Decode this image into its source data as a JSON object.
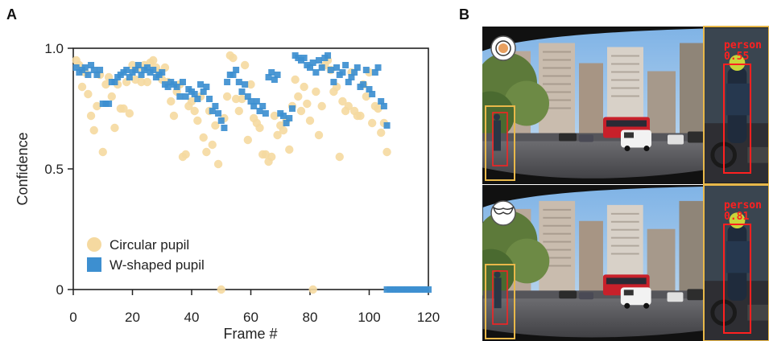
{
  "panel_a_letter": "A",
  "panel_b_letter": "B",
  "chart_data": {
    "type": "scatter",
    "xlabel": "Frame #",
    "ylabel": "Confidence",
    "xlim": [
      0,
      120
    ],
    "ylim": [
      0,
      1.0
    ],
    "xticks": [
      "0",
      "20",
      "40",
      "60",
      "80",
      "100",
      "120"
    ],
    "xtick_values": [
      0,
      20,
      40,
      60,
      80,
      100,
      120
    ],
    "yticks": [
      "0",
      "0.5",
      "1.0"
    ],
    "ytick_values": [
      0,
      0.5,
      1.0
    ],
    "legend_position": "bottom-left",
    "series": [
      {
        "name": "Circular pupil",
        "marker": "circle",
        "color": "#f5d9a0",
        "points": [
          [
            1,
            0.95
          ],
          [
            2,
            0.93
          ],
          [
            3,
            0.84
          ],
          [
            4,
            0.9
          ],
          [
            5,
            0.81
          ],
          [
            6,
            0.72
          ],
          [
            7,
            0.66
          ],
          [
            8,
            0.76
          ],
          [
            9,
            0.89
          ],
          [
            10,
            0.57
          ],
          [
            11,
            0.85
          ],
          [
            12,
            0.88
          ],
          [
            13,
            0.8
          ],
          [
            14,
            0.67
          ],
          [
            15,
            0.85
          ],
          [
            16,
            0.75
          ],
          [
            17,
            0.75
          ],
          [
            18,
            0.86
          ],
          [
            19,
            0.73
          ],
          [
            20,
            0.93
          ],
          [
            21,
            0.87
          ],
          [
            22,
            0.92
          ],
          [
            23,
            0.86
          ],
          [
            24,
            0.93
          ],
          [
            25,
            0.86
          ],
          [
            26,
            0.94
          ],
          [
            27,
            0.95
          ],
          [
            28,
            0.92
          ],
          [
            29,
            0.9
          ],
          [
            30,
            0.87
          ],
          [
            31,
            0.92
          ],
          [
            32,
            0.86
          ],
          [
            33,
            0.78
          ],
          [
            34,
            0.72
          ],
          [
            35,
            0.82
          ],
          [
            36,
            0.85
          ],
          [
            37,
            0.55
          ],
          [
            38,
            0.56
          ],
          [
            39,
            0.76
          ],
          [
            40,
            0.78
          ],
          [
            41,
            0.74
          ],
          [
            42,
            0.7
          ],
          [
            43,
            0.8
          ],
          [
            44,
            0.63
          ],
          [
            45,
            0.57
          ],
          [
            46,
            0.74
          ],
          [
            47,
            0.6
          ],
          [
            48,
            0.68
          ],
          [
            49,
            0.52
          ],
          [
            50,
            0.0
          ],
          [
            51,
            0.71
          ],
          [
            52,
            0.8
          ],
          [
            53,
            0.97
          ],
          [
            54,
            0.96
          ],
          [
            55,
            0.79
          ],
          [
            56,
            0.74
          ],
          [
            57,
            0.79
          ],
          [
            58,
            0.93
          ],
          [
            59,
            0.62
          ],
          [
            60,
            0.85
          ],
          [
            61,
            0.71
          ],
          [
            62,
            0.69
          ],
          [
            63,
            0.67
          ],
          [
            64,
            0.56
          ],
          [
            65,
            0.56
          ],
          [
            66,
            0.53
          ],
          [
            67,
            0.55
          ],
          [
            68,
            0.72
          ],
          [
            69,
            0.64
          ],
          [
            70,
            0.68
          ],
          [
            71,
            0.66
          ],
          [
            72,
            0.7
          ],
          [
            73,
            0.58
          ],
          [
            74,
            0.76
          ],
          [
            75,
            0.87
          ],
          [
            76,
            0.8
          ],
          [
            77,
            0.74
          ],
          [
            78,
            0.84
          ],
          [
            79,
            0.77
          ],
          [
            80,
            0.7
          ],
          [
            81,
            0.0
          ],
          [
            82,
            0.82
          ],
          [
            83,
            0.64
          ],
          [
            84,
            0.76
          ],
          [
            85,
            0.93
          ],
          [
            86,
            0.95
          ],
          [
            87,
            0.91
          ],
          [
            88,
            0.82
          ],
          [
            89,
            0.84
          ],
          [
            90,
            0.55
          ],
          [
            91,
            0.78
          ],
          [
            92,
            0.74
          ],
          [
            93,
            0.76
          ],
          [
            94,
            0.9
          ],
          [
            95,
            0.74
          ],
          [
            96,
            0.72
          ],
          [
            97,
            0.72
          ],
          [
            98,
            0.85
          ],
          [
            99,
            0.8
          ],
          [
            100,
            0.9
          ],
          [
            101,
            0.69
          ],
          [
            102,
            0.76
          ],
          [
            103,
            0.75
          ],
          [
            104,
            0.65
          ],
          [
            105,
            0.69
          ],
          [
            106,
            0.57
          ]
        ]
      },
      {
        "name": "W-shaped pupil",
        "marker": "square",
        "color": "#3d8fd0",
        "points": [
          [
            1,
            0.92
          ],
          [
            2,
            0.9
          ],
          [
            3,
            0.91
          ],
          [
            4,
            0.92
          ],
          [
            5,
            0.89
          ],
          [
            6,
            0.93
          ],
          [
            7,
            0.91
          ],
          [
            8,
            0.89
          ],
          [
            9,
            0.91
          ],
          [
            10,
            0.77
          ],
          [
            11,
            0.77
          ],
          [
            12,
            0.77
          ],
          [
            13,
            0.86
          ],
          [
            14,
            0.86
          ],
          [
            15,
            0.88
          ],
          [
            16,
            0.89
          ],
          [
            17,
            0.9
          ],
          [
            18,
            0.91
          ],
          [
            19,
            0.88
          ],
          [
            20,
            0.9
          ],
          [
            21,
            0.91
          ],
          [
            22,
            0.93
          ],
          [
            23,
            0.89
          ],
          [
            24,
            0.91
          ],
          [
            25,
            0.92
          ],
          [
            26,
            0.9
          ],
          [
            27,
            0.91
          ],
          [
            28,
            0.88
          ],
          [
            29,
            0.89
          ],
          [
            30,
            0.9
          ],
          [
            31,
            0.85
          ],
          [
            32,
            0.84
          ],
          [
            33,
            0.86
          ],
          [
            34,
            0.85
          ],
          [
            35,
            0.84
          ],
          [
            36,
            0.8
          ],
          [
            37,
            0.86
          ],
          [
            38,
            0.8
          ],
          [
            39,
            0.83
          ],
          [
            40,
            0.82
          ],
          [
            41,
            0.81
          ],
          [
            42,
            0.79
          ],
          [
            43,
            0.85
          ],
          [
            44,
            0.82
          ],
          [
            45,
            0.84
          ],
          [
            46,
            0.79
          ],
          [
            47,
            0.74
          ],
          [
            48,
            0.76
          ],
          [
            49,
            0.73
          ],
          [
            50,
            0.7
          ],
          [
            51,
            0.67
          ],
          [
            52,
            0.86
          ],
          [
            53,
            0.89
          ],
          [
            54,
            0.89
          ],
          [
            55,
            0.91
          ],
          [
            56,
            0.86
          ],
          [
            57,
            0.82
          ],
          [
            58,
            0.85
          ],
          [
            59,
            0.8
          ],
          [
            60,
            0.78
          ],
          [
            61,
            0.76
          ],
          [
            62,
            0.78
          ],
          [
            63,
            0.74
          ],
          [
            64,
            0.76
          ],
          [
            65,
            0.73
          ],
          [
            66,
            0.88
          ],
          [
            67,
            0.9
          ],
          [
            68,
            0.87
          ],
          [
            69,
            0.89
          ],
          [
            70,
            0.73
          ],
          [
            71,
            0.72
          ],
          [
            72,
            0.69
          ],
          [
            73,
            0.71
          ],
          [
            74,
            0.75
          ],
          [
            75,
            0.97
          ],
          [
            76,
            0.96
          ],
          [
            77,
            0.95
          ],
          [
            78,
            0.96
          ],
          [
            79,
            0.93
          ],
          [
            80,
            0.92
          ],
          [
            81,
            0.94
          ],
          [
            82,
            0.9
          ],
          [
            83,
            0.95
          ],
          [
            84,
            0.92
          ],
          [
            85,
            0.96
          ],
          [
            86,
            0.97
          ],
          [
            87,
            0.91
          ],
          [
            88,
            0.86
          ],
          [
            89,
            0.92
          ],
          [
            90,
            0.89
          ],
          [
            91,
            0.9
          ],
          [
            92,
            0.93
          ],
          [
            93,
            0.86
          ],
          [
            94,
            0.88
          ],
          [
            95,
            0.9
          ],
          [
            96,
            0.92
          ],
          [
            97,
            0.84
          ],
          [
            98,
            0.85
          ],
          [
            99,
            0.91
          ],
          [
            100,
            0.83
          ],
          [
            101,
            0.81
          ],
          [
            102,
            0.9
          ],
          [
            103,
            0.92
          ],
          [
            104,
            0.78
          ],
          [
            105,
            0.76
          ],
          [
            106,
            0.68
          ],
          [
            106,
            0
          ],
          [
            107,
            0
          ],
          [
            108,
            0
          ],
          [
            109,
            0
          ],
          [
            110,
            0
          ],
          [
            111,
            0
          ],
          [
            112,
            0
          ],
          [
            113,
            0
          ],
          [
            114,
            0
          ],
          [
            115,
            0
          ],
          [
            116,
            0
          ],
          [
            117,
            0
          ],
          [
            118,
            0
          ],
          [
            119,
            0
          ],
          [
            120,
            0
          ]
        ]
      }
    ]
  },
  "photo_top": {
    "icon": "circular-pupil-icon",
    "detection_label": "person",
    "detection_score": "0.55"
  },
  "photo_bottom": {
    "icon": "w-shaped-pupil-icon",
    "detection_label": "person",
    "detection_score": "0.81"
  },
  "colors": {
    "circle": "#f5d9a0",
    "square": "#3d8fd0",
    "frame_border": "#e8b84a",
    "detection_box": "#ff2020"
  }
}
